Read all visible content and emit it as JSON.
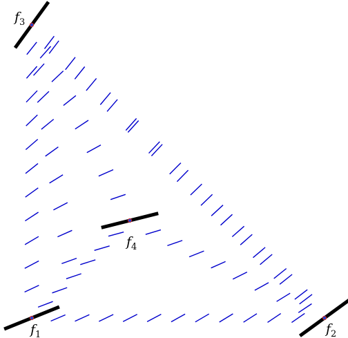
{
  "colors": {
    "background": "#ffffff",
    "field_segment": "#0000cc",
    "frame_segment": "#000000",
    "frame_center": "#cc2222",
    "frame_center_inner": "#2244cc"
  },
  "frames": [
    {
      "id": "f1",
      "letter": "f",
      "subscript": "1",
      "angle_deg": 22
    },
    {
      "id": "f2",
      "letter": "f",
      "subscript": "2",
      "angle_deg": 36
    },
    {
      "id": "f3",
      "letter": "f",
      "subscript": "3",
      "angle_deg": 54
    },
    {
      "id": "f4",
      "letter": "f",
      "subscript": "4",
      "angle_deg": 14
    }
  ]
}
